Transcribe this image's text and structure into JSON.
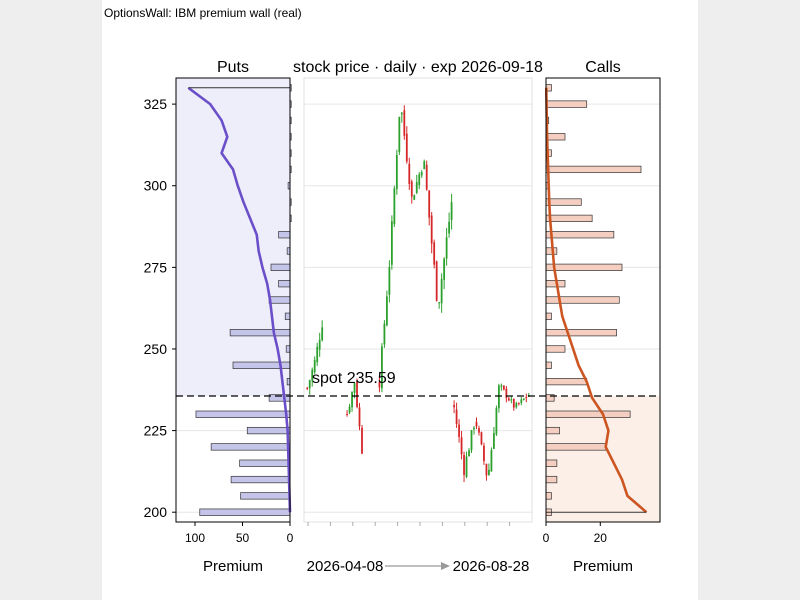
{
  "window_title": "OptionsWall: IBM premium wall (real)",
  "spot_label": "spot 235.59",
  "chart_data": [
    {
      "type": "bar",
      "panel": "puts",
      "title": "Puts",
      "xlabel": "Premium",
      "orientation": "horizontal",
      "xlim": [
        120,
        0
      ],
      "xticks": [
        100,
        50,
        0
      ],
      "ylim": [
        197,
        333
      ],
      "yticks": [
        200,
        225,
        250,
        275,
        300,
        325
      ],
      "strikes": [
        200,
        205,
        210,
        215,
        220,
        225,
        230,
        235,
        240,
        245,
        250,
        255,
        260,
        265,
        270,
        275,
        280,
        285,
        290,
        295,
        300,
        305,
        310,
        315,
        320,
        325,
        330
      ],
      "values": [
        95,
        52,
        62,
        53,
        83,
        45,
        99,
        22,
        3,
        60,
        4,
        63,
        5,
        22,
        12,
        20,
        3,
        12,
        0,
        0,
        2,
        0,
        0,
        0,
        0,
        0,
        0
      ],
      "cumulative_line": [
        0,
        0.5,
        1,
        1.5,
        2,
        2.5,
        4,
        6,
        8,
        10,
        13,
        17,
        19,
        21,
        24,
        29,
        33,
        35,
        42,
        49,
        55,
        60,
        72,
        66,
        72,
        84,
        107
      ],
      "shade_from_spot": "above"
    },
    {
      "type": "candlestick",
      "panel": "price",
      "title": "stock price · daily · exp 2026-09-18",
      "x_start": "2026-04-08",
      "x_end": "2026-08-28",
      "ylim": [
        197,
        333
      ],
      "spot": 235.59,
      "segments": [
        [
          238,
          246,
          258,
          7,
          2.3
        ],
        [
          230,
          240,
          219,
          7,
          1.8
        ],
        [
          240,
          276,
          322,
          9,
          2.4
        ],
        [
          322,
          296,
          306,
          9,
          2.6
        ],
        [
          306,
          263,
          295,
          12,
          3.2
        ],
        [
          232,
          213,
          227,
          9,
          2.2
        ],
        [
          227,
          210,
          238,
          10,
          2.2
        ],
        [
          238,
          232,
          236,
          12,
          1.4
        ]
      ],
      "gaps": [
        9,
        6
      ],
      "up_color": "#2ca02c",
      "down_color": "#d62728"
    },
    {
      "type": "bar",
      "panel": "calls",
      "title": "Calls",
      "xlabel": "Premium",
      "orientation": "horizontal",
      "xlim": [
        0,
        42
      ],
      "xticks": [
        0,
        20
      ],
      "ylim": [
        197,
        333
      ],
      "strikes": [
        200,
        205,
        210,
        215,
        220,
        225,
        230,
        235,
        240,
        245,
        250,
        255,
        260,
        265,
        270,
        275,
        280,
        285,
        290,
        295,
        300,
        305,
        310,
        315,
        320,
        325,
        330
      ],
      "values": [
        2,
        2,
        4,
        4,
        22,
        5,
        31,
        3,
        15,
        2,
        7,
        26,
        2,
        27,
        7,
        28,
        4,
        25,
        17,
        13,
        1,
        35,
        2,
        7,
        1,
        15,
        2
      ],
      "cumulative_line": [
        37,
        30,
        28,
        25,
        22,
        23,
        21,
        17,
        15,
        12,
        10,
        8,
        6,
        5,
        4,
        3,
        2.5,
        2,
        1.5,
        1.2,
        1,
        0.8,
        0.6,
        0.4,
        0.3,
        0.2,
        0.1
      ],
      "shade_from_spot": "below"
    }
  ]
}
